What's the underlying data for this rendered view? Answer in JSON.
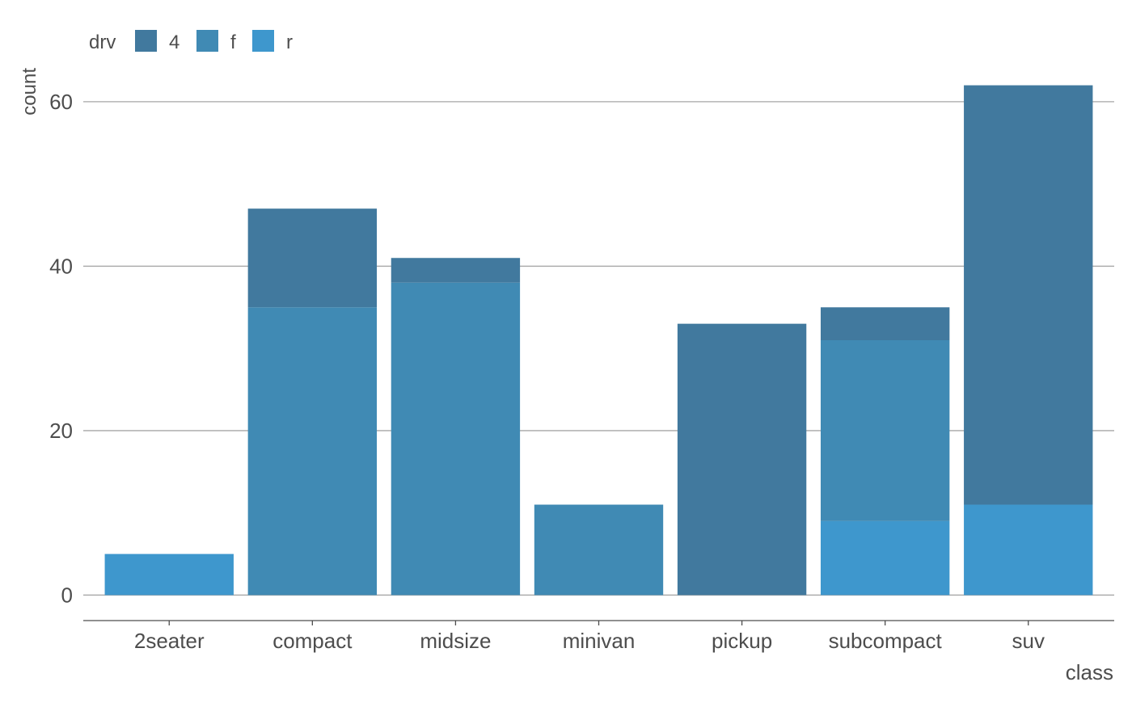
{
  "chart_data": {
    "type": "bar",
    "stacked": true,
    "categories": [
      "2seater",
      "compact",
      "midsize",
      "minivan",
      "pickup",
      "subcompact",
      "suv"
    ],
    "series": [
      {
        "name": "4",
        "color": "#41799e",
        "values": [
          0,
          12,
          3,
          0,
          33,
          4,
          51
        ]
      },
      {
        "name": "f",
        "color": "#408ab4",
        "values": [
          0,
          35,
          38,
          11,
          0,
          22,
          0
        ]
      },
      {
        "name": "r",
        "color": "#3e97cd",
        "values": [
          5,
          0,
          0,
          0,
          0,
          9,
          11
        ]
      }
    ],
    "legend": {
      "title": "drv",
      "position": "top-left"
    },
    "xlabel": "class",
    "ylabel": "count",
    "ylim": [
      -3.1,
      65.1
    ],
    "yticks": [
      0,
      20,
      40,
      60
    ],
    "grid": "horizontal-major",
    "axis_line_color": "#4d4d4d",
    "grid_color": "#a6a6a6"
  }
}
